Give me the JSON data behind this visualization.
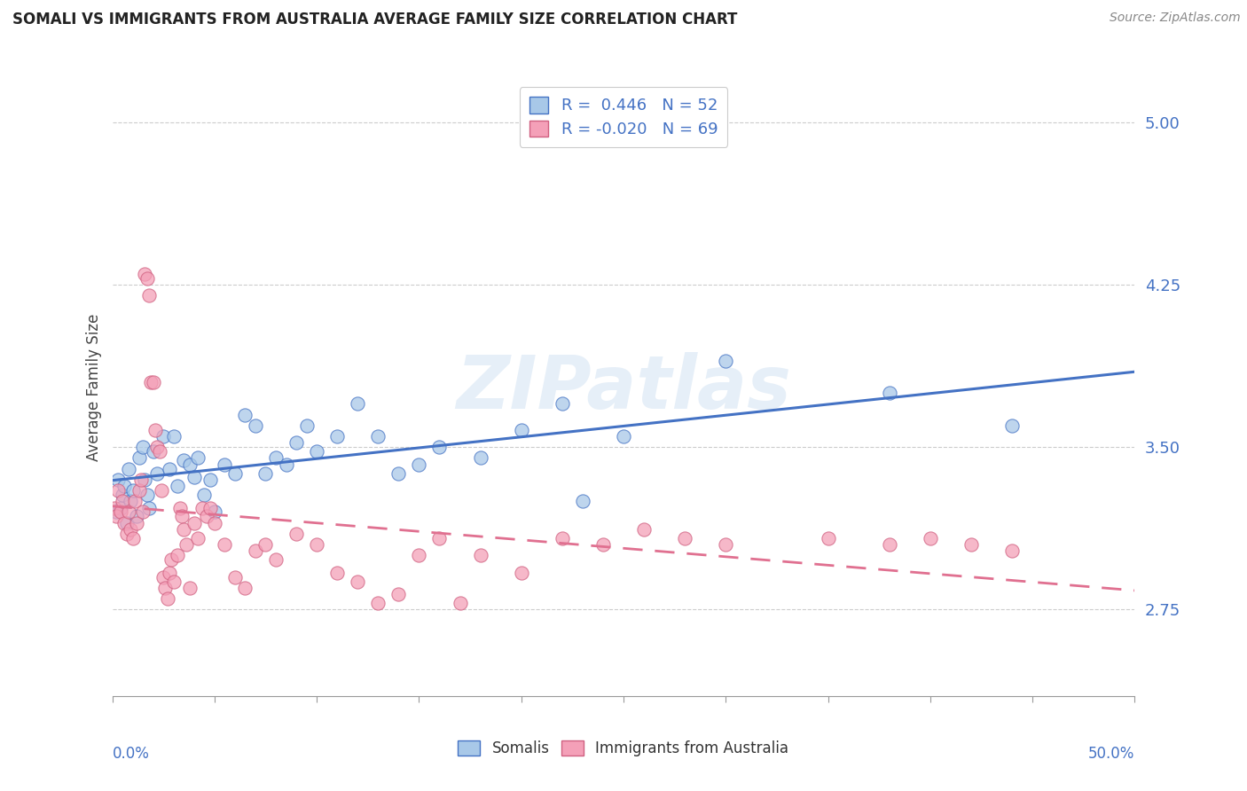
{
  "title": "SOMALI VS IMMIGRANTS FROM AUSTRALIA AVERAGE FAMILY SIZE CORRELATION CHART",
  "source": "Source: ZipAtlas.com",
  "ylabel": "Average Family Size",
  "yticks": [
    2.75,
    3.5,
    4.25,
    5.0
  ],
  "xlim": [
    0.0,
    0.5
  ],
  "ylim": [
    2.35,
    5.2
  ],
  "watermark": "ZIPatlas",
  "somali_color": "#A8C8E8",
  "australia_color": "#F4A0B8",
  "line_somali_color": "#4472C4",
  "line_australia_color": "#E07090",
  "somali_R": 0.446,
  "somali_N": 52,
  "australia_R": -0.02,
  "australia_N": 69,
  "somali_points": [
    [
      0.002,
      3.2
    ],
    [
      0.003,
      3.35
    ],
    [
      0.004,
      3.22
    ],
    [
      0.005,
      3.28
    ],
    [
      0.006,
      3.32
    ],
    [
      0.007,
      3.15
    ],
    [
      0.008,
      3.4
    ],
    [
      0.009,
      3.25
    ],
    [
      0.01,
      3.3
    ],
    [
      0.012,
      3.18
    ],
    [
      0.013,
      3.45
    ],
    [
      0.015,
      3.5
    ],
    [
      0.016,
      3.35
    ],
    [
      0.017,
      3.28
    ],
    [
      0.018,
      3.22
    ],
    [
      0.02,
      3.48
    ],
    [
      0.022,
      3.38
    ],
    [
      0.025,
      3.55
    ],
    [
      0.028,
      3.4
    ],
    [
      0.03,
      3.55
    ],
    [
      0.032,
      3.32
    ],
    [
      0.035,
      3.44
    ],
    [
      0.038,
      3.42
    ],
    [
      0.04,
      3.36
    ],
    [
      0.042,
      3.45
    ],
    [
      0.045,
      3.28
    ],
    [
      0.048,
      3.35
    ],
    [
      0.05,
      3.2
    ],
    [
      0.055,
      3.42
    ],
    [
      0.06,
      3.38
    ],
    [
      0.065,
      3.65
    ],
    [
      0.07,
      3.6
    ],
    [
      0.075,
      3.38
    ],
    [
      0.08,
      3.45
    ],
    [
      0.085,
      3.42
    ],
    [
      0.09,
      3.52
    ],
    [
      0.095,
      3.6
    ],
    [
      0.1,
      3.48
    ],
    [
      0.11,
      3.55
    ],
    [
      0.12,
      3.7
    ],
    [
      0.13,
      3.55
    ],
    [
      0.14,
      3.38
    ],
    [
      0.15,
      3.42
    ],
    [
      0.16,
      3.5
    ],
    [
      0.18,
      3.45
    ],
    [
      0.2,
      3.58
    ],
    [
      0.22,
      3.7
    ],
    [
      0.23,
      3.25
    ],
    [
      0.25,
      3.55
    ],
    [
      0.3,
      3.9
    ],
    [
      0.38,
      3.75
    ],
    [
      0.44,
      3.6
    ]
  ],
  "australia_points": [
    [
      0.001,
      3.22
    ],
    [
      0.002,
      3.18
    ],
    [
      0.003,
      3.3
    ],
    [
      0.004,
      3.2
    ],
    [
      0.005,
      3.25
    ],
    [
      0.006,
      3.15
    ],
    [
      0.007,
      3.1
    ],
    [
      0.008,
      3.2
    ],
    [
      0.009,
      3.12
    ],
    [
      0.01,
      3.08
    ],
    [
      0.011,
      3.25
    ],
    [
      0.012,
      3.15
    ],
    [
      0.013,
      3.3
    ],
    [
      0.014,
      3.35
    ],
    [
      0.015,
      3.2
    ],
    [
      0.016,
      4.3
    ],
    [
      0.017,
      4.28
    ],
    [
      0.018,
      4.2
    ],
    [
      0.019,
      3.8
    ],
    [
      0.02,
      3.8
    ],
    [
      0.021,
      3.58
    ],
    [
      0.022,
      3.5
    ],
    [
      0.023,
      3.48
    ],
    [
      0.024,
      3.3
    ],
    [
      0.025,
      2.9
    ],
    [
      0.026,
      2.85
    ],
    [
      0.027,
      2.8
    ],
    [
      0.028,
      2.92
    ],
    [
      0.029,
      2.98
    ],
    [
      0.03,
      2.88
    ],
    [
      0.032,
      3.0
    ],
    [
      0.033,
      3.22
    ],
    [
      0.034,
      3.18
    ],
    [
      0.035,
      3.12
    ],
    [
      0.036,
      3.05
    ],
    [
      0.038,
      2.85
    ],
    [
      0.04,
      3.15
    ],
    [
      0.042,
      3.08
    ],
    [
      0.044,
      3.22
    ],
    [
      0.046,
      3.18
    ],
    [
      0.048,
      3.22
    ],
    [
      0.05,
      3.15
    ],
    [
      0.055,
      3.05
    ],
    [
      0.06,
      2.9
    ],
    [
      0.065,
      2.85
    ],
    [
      0.07,
      3.02
    ],
    [
      0.075,
      3.05
    ],
    [
      0.08,
      2.98
    ],
    [
      0.09,
      3.1
    ],
    [
      0.1,
      3.05
    ],
    [
      0.11,
      2.92
    ],
    [
      0.12,
      2.88
    ],
    [
      0.13,
      2.78
    ],
    [
      0.14,
      2.82
    ],
    [
      0.15,
      3.0
    ],
    [
      0.16,
      3.08
    ],
    [
      0.17,
      2.78
    ],
    [
      0.18,
      3.0
    ],
    [
      0.2,
      2.92
    ],
    [
      0.22,
      3.08
    ],
    [
      0.24,
      3.05
    ],
    [
      0.26,
      3.12
    ],
    [
      0.28,
      3.08
    ],
    [
      0.3,
      3.05
    ],
    [
      0.35,
      3.08
    ],
    [
      0.38,
      3.05
    ],
    [
      0.4,
      3.08
    ],
    [
      0.42,
      3.05
    ],
    [
      0.44,
      3.02
    ]
  ]
}
